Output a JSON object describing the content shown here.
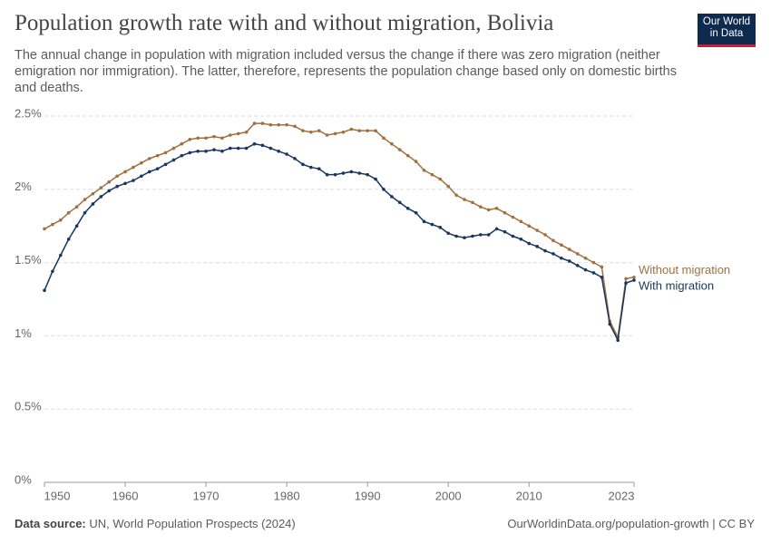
{
  "chart_data": {
    "type": "line",
    "title": "Population growth rate with and without migration, Bolivia",
    "subtitle": "The annual change in population with migration included versus the change if there was zero migration (neither emigration nor immigration). The latter, therefore, represents the population change based only on domestic births and deaths.",
    "logo": [
      "Our World",
      "in Data"
    ],
    "source_label": "Data source:",
    "source": "UN, World Population Prospects (2024)",
    "footer": "OurWorldinData.org/population-growth | CC BY",
    "x": [
      1950,
      1951,
      1952,
      1953,
      1954,
      1955,
      1956,
      1957,
      1958,
      1959,
      1960,
      1961,
      1962,
      1963,
      1964,
      1965,
      1966,
      1967,
      1968,
      1969,
      1970,
      1971,
      1972,
      1973,
      1974,
      1975,
      1976,
      1977,
      1978,
      1979,
      1980,
      1981,
      1982,
      1983,
      1984,
      1985,
      1986,
      1987,
      1988,
      1989,
      1990,
      1991,
      1992,
      1993,
      1994,
      1995,
      1996,
      1997,
      1998,
      1999,
      2000,
      2001,
      2002,
      2003,
      2004,
      2005,
      2006,
      2007,
      2008,
      2009,
      2010,
      2011,
      2012,
      2013,
      2014,
      2015,
      2016,
      2017,
      2018,
      2019,
      2020,
      2021,
      2022,
      2023
    ],
    "series": [
      {
        "name": "Without migration",
        "color": "#a2703f",
        "values": [
          1.73,
          1.76,
          1.79,
          1.84,
          1.88,
          1.93,
          1.97,
          2.01,
          2.05,
          2.09,
          2.12,
          2.15,
          2.18,
          2.21,
          2.23,
          2.25,
          2.28,
          2.31,
          2.34,
          2.35,
          2.35,
          2.36,
          2.35,
          2.37,
          2.38,
          2.39,
          2.45,
          2.45,
          2.44,
          2.44,
          2.44,
          2.43,
          2.4,
          2.39,
          2.4,
          2.37,
          2.38,
          2.39,
          2.41,
          2.4,
          2.4,
          2.4,
          2.35,
          2.31,
          2.27,
          2.23,
          2.19,
          2.13,
          2.1,
          2.07,
          2.02,
          1.96,
          1.93,
          1.91,
          1.88,
          1.86,
          1.87,
          1.84,
          1.81,
          1.78,
          1.75,
          1.72,
          1.69,
          1.65,
          1.62,
          1.59,
          1.56,
          1.53,
          1.5,
          1.47,
          1.1,
          0.99,
          1.39,
          1.4
        ]
      },
      {
        "name": "With migration",
        "color": "#18365f",
        "values": [
          1.31,
          1.44,
          1.55,
          1.66,
          1.75,
          1.84,
          1.9,
          1.95,
          1.99,
          2.02,
          2.04,
          2.06,
          2.09,
          2.12,
          2.14,
          2.17,
          2.2,
          2.23,
          2.25,
          2.26,
          2.26,
          2.27,
          2.26,
          2.28,
          2.28,
          2.28,
          2.31,
          2.3,
          2.28,
          2.26,
          2.24,
          2.21,
          2.17,
          2.15,
          2.14,
          2.1,
          2.1,
          2.11,
          2.12,
          2.11,
          2.1,
          2.07,
          2.0,
          1.95,
          1.91,
          1.87,
          1.84,
          1.78,
          1.76,
          1.74,
          1.7,
          1.68,
          1.67,
          1.68,
          1.69,
          1.69,
          1.73,
          1.71,
          1.68,
          1.66,
          1.63,
          1.61,
          1.58,
          1.56,
          1.53,
          1.51,
          1.48,
          1.45,
          1.43,
          1.4,
          1.08,
          0.97,
          1.36,
          1.38
        ]
      }
    ],
    "xlim": [
      1950,
      2023
    ],
    "xticks": [
      1950,
      1960,
      1970,
      1980,
      1990,
      2000,
      2010,
      2023
    ],
    "ylim": [
      0,
      2.5
    ],
    "yticks": [
      {
        "value": 0,
        "label": "0%"
      },
      {
        "value": 0.5,
        "label": "0.5%"
      },
      {
        "value": 1,
        "label": "1%"
      },
      {
        "value": 1.5,
        "label": "1.5%"
      },
      {
        "value": 2,
        "label": "2%"
      },
      {
        "value": 2.5,
        "label": "2.5%"
      }
    ],
    "grid": true
  }
}
